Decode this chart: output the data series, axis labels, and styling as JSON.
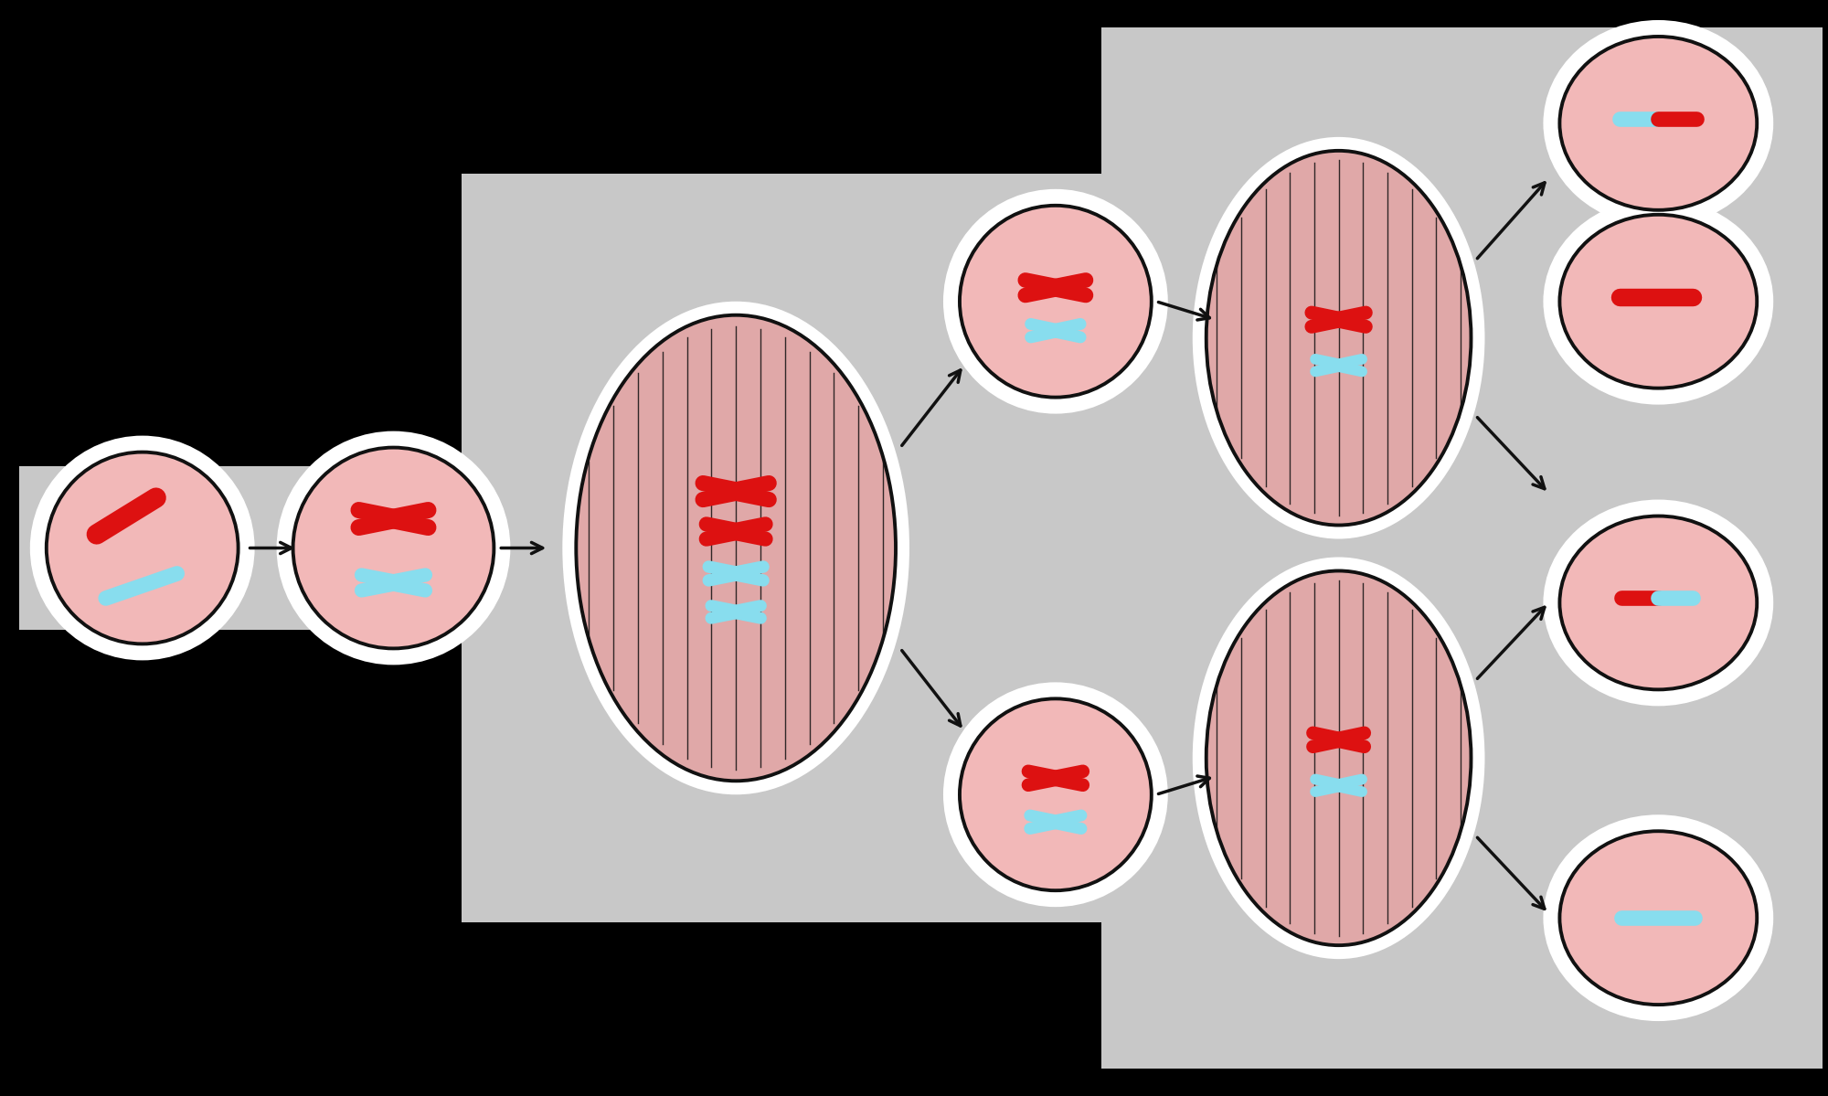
{
  "bg_color": "#000000",
  "cell_fill": "#f2b8b8",
  "cell_edge": "#111111",
  "red_chrom": "#dd1111",
  "blue_chrom": "#88ddee",
  "spindle_fill": "#e0a8a8",
  "spindle_edge": "#111111",
  "gray_box": "#c8c8c8",
  "white_glow": "#ffffff",
  "arrow_color": "#111111",
  "bar_fill": "#c8c8c8",
  "figure_width": 20.0,
  "figure_height": 11.99,
  "lw_cell": 2.8,
  "lw_chrom_thin": 10,
  "lw_chrom_thick": 14,
  "lw_spindle_fiber": 1.0
}
